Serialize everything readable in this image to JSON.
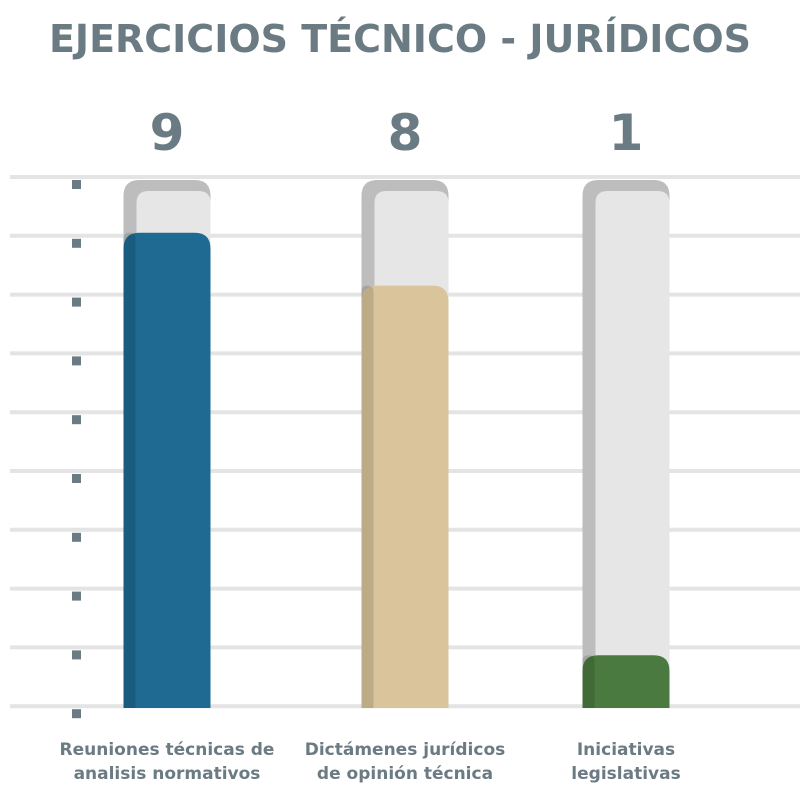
{
  "chart_data": {
    "type": "bar",
    "title": "EJERCICIOS TÉCNICO - JURÍDICOS",
    "categories": [
      "Reuniones técnicas de\nanalisis normativos",
      "Dictámenes jurídicos\nde opinión técnica",
      "Iniciativas\nlegislativas"
    ],
    "values": [
      9,
      8,
      1
    ],
    "colors": [
      "#1e6a93",
      "#d9c49c",
      "#4a7a3f"
    ],
    "ylim": [
      0,
      10
    ]
  }
}
